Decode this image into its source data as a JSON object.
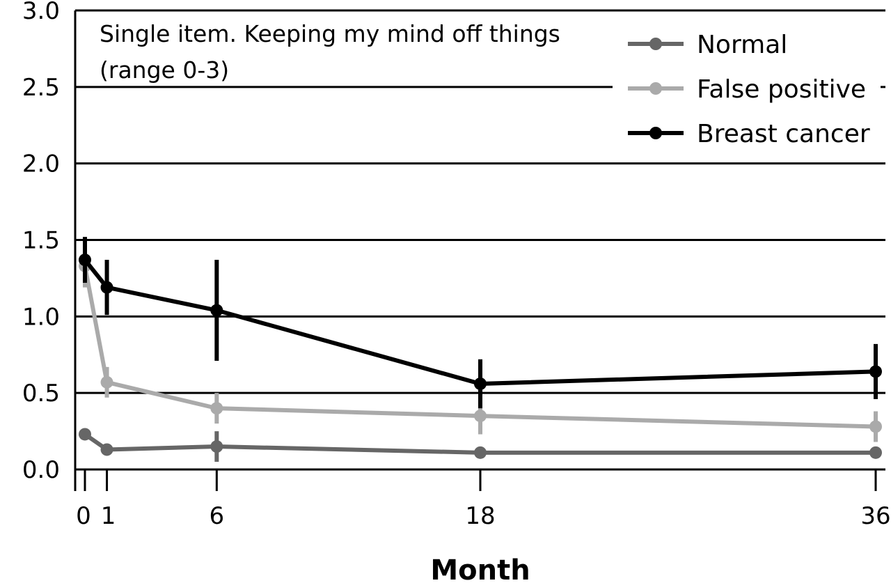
{
  "chart_data": {
    "type": "line",
    "title": "",
    "annotation": [
      "Single item. Keeping my mind off things",
      "(range 0-3)"
    ],
    "xlabel": "Month",
    "ylabel": "",
    "ylim": [
      0,
      3
    ],
    "yticks": [
      "0.0",
      "0.5",
      "1.0",
      "1.5",
      "2.0",
      "2.5",
      "3.0"
    ],
    "x": [
      0,
      1,
      6,
      18,
      36
    ],
    "xticks": [
      "0",
      "1",
      "6",
      "18",
      "36"
    ],
    "grid": "horizontal",
    "legend_position": "top-right",
    "series": [
      {
        "name": "Normal",
        "color": "#666666",
        "values": [
          0.23,
          0.13,
          0.15,
          0.11,
          0.11
        ],
        "error": [
          0,
          0,
          0.1,
          0,
          0
        ]
      },
      {
        "name": "False positive",
        "color": "#aaaaaa",
        "values": [
          1.33,
          0.57,
          0.4,
          0.35,
          0.28
        ],
        "error": [
          0.14,
          0.1,
          0.1,
          0.12,
          0.1
        ]
      },
      {
        "name": "Breast cancer",
        "color": "#000000",
        "values": [
          1.37,
          1.19,
          1.04,
          0.56,
          0.64
        ],
        "error": [
          0.15,
          0.18,
          0.33,
          0.16,
          0.18
        ]
      }
    ]
  }
}
